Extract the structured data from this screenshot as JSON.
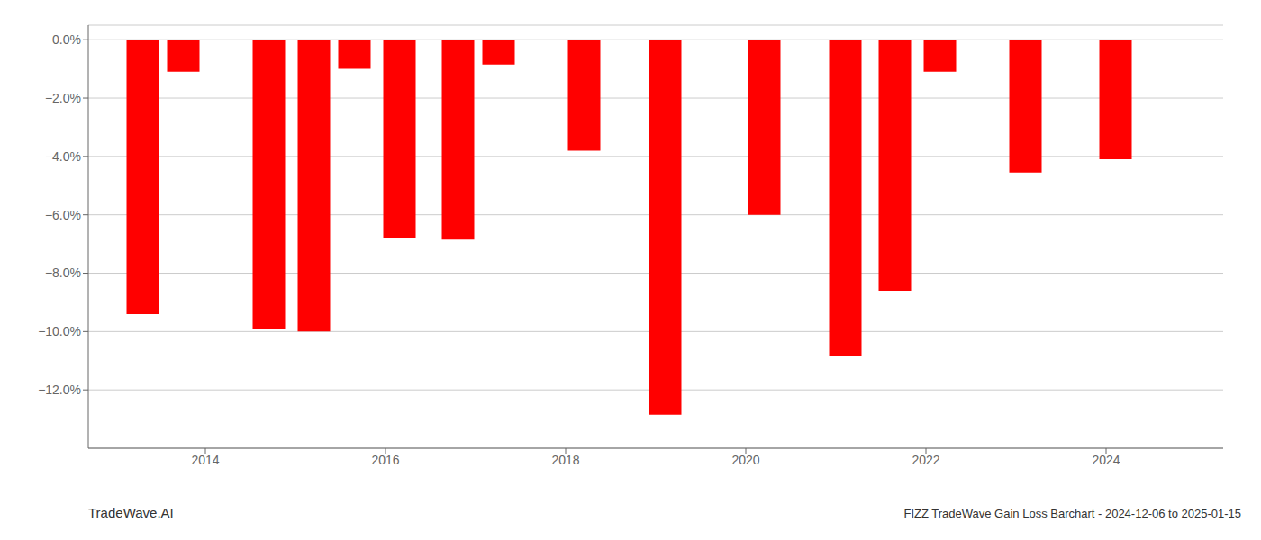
{
  "chart_data": {
    "type": "bar",
    "title": "FIZZ TradeWave Gain Loss Barchart - 2024-12-06 to 2025-01-15",
    "annotations": [
      "TradeWave.AI"
    ],
    "x": [
      2013.3,
      2013.75,
      2014.7,
      2015.2,
      2015.65,
      2016.15,
      2016.8,
      2017.25,
      2018.2,
      2019.1,
      2020.2,
      2021.1,
      2021.65,
      2022.15,
      2023.1,
      2024.1
    ],
    "values": [
      -9.4,
      -1.1,
      -9.9,
      -10.0,
      -1.0,
      -6.8,
      -6.85,
      -0.85,
      -3.8,
      -12.85,
      -6.0,
      -10.85,
      -8.6,
      -1.1,
      -4.55,
      -4.1
    ],
    "color": "#ff0000",
    "xlim": [
      2012.7,
      2025.3
    ],
    "xticks": [
      2014,
      2016,
      2018,
      2020,
      2022,
      2024
    ],
    "ylim": [
      -14.0,
      0.5
    ],
    "yticks": [
      {
        "value": 0.0,
        "label": "0.0%"
      },
      {
        "value": -2.0,
        "label": "−2.0%"
      },
      {
        "value": -4.0,
        "label": "−4.0%"
      },
      {
        "value": -6.0,
        "label": "−6.0%"
      },
      {
        "value": -8.0,
        "label": "−8.0%"
      },
      {
        "value": -10.0,
        "label": "−10.0%"
      },
      {
        "value": -12.0,
        "label": "−12.0%"
      }
    ],
    "grid": true
  }
}
